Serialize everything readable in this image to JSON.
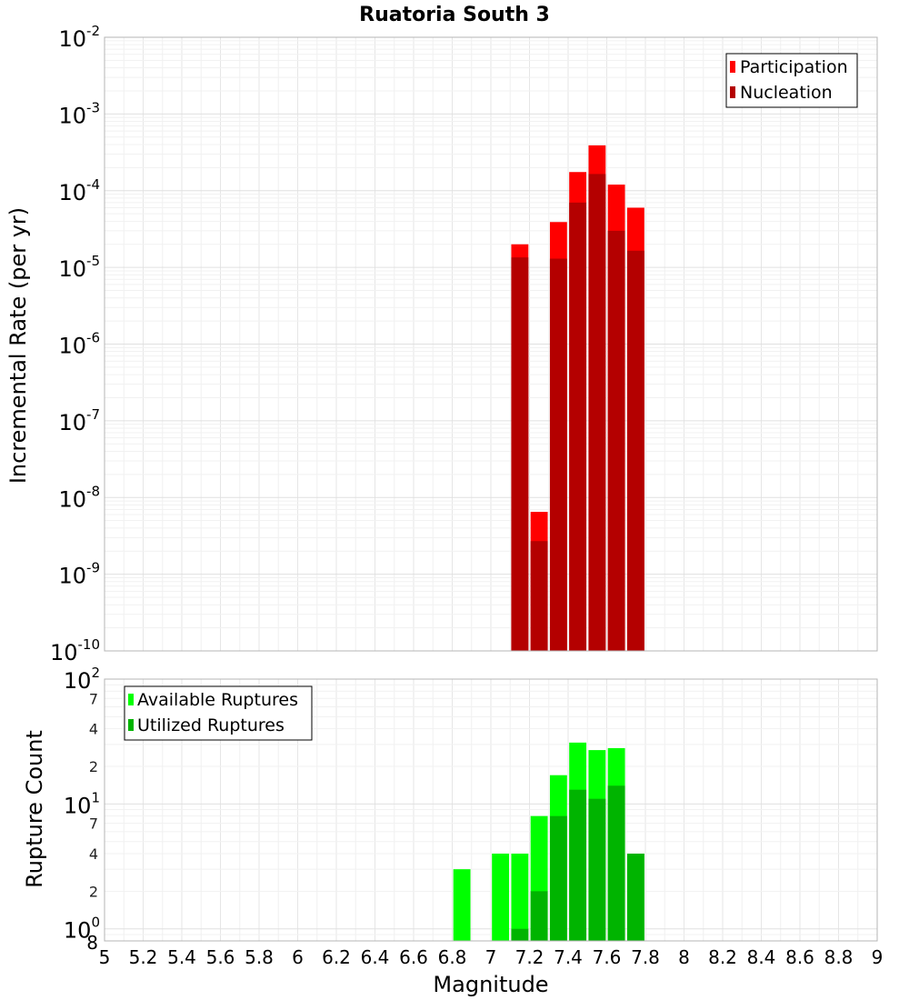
{
  "chart_data": [
    {
      "type": "bar",
      "title": "Ruatoria South 3",
      "xlabel": "",
      "ylabel": "Incremental Rate (per yr)",
      "yscale": "log",
      "ylim": [
        1e-10,
        0.01
      ],
      "xlim": [
        5,
        9
      ],
      "grid": true,
      "legend_position": "top-right",
      "y_tick_labels": [
        {
          "base": "10",
          "exp": "-2"
        },
        {
          "base": "10",
          "exp": "-3"
        },
        {
          "base": "10",
          "exp": "-4"
        },
        {
          "base": "10",
          "exp": "-5"
        },
        {
          "base": "10",
          "exp": "-6"
        },
        {
          "base": "10",
          "exp": "-7"
        },
        {
          "base": "10",
          "exp": "-8"
        },
        {
          "base": "10",
          "exp": "-9"
        },
        {
          "base": "10",
          "exp": "-10"
        }
      ],
      "series": [
        {
          "name": "Participation",
          "color": "#ff0000",
          "x": [
            7.15,
            7.25,
            7.35,
            7.45,
            7.55,
            7.65,
            7.75
          ],
          "values": [
            2e-05,
            6.5e-09,
            3.9e-05,
            0.000175,
            0.00039,
            0.00012,
            6e-05
          ]
        },
        {
          "name": "Nucleation",
          "color": "#b40000",
          "x": [
            7.15,
            7.25,
            7.35,
            7.45,
            7.55,
            7.65,
            7.75
          ],
          "values": [
            1.35e-05,
            2.7e-09,
            1.3e-05,
            7e-05,
            0.000165,
            3e-05,
            1.65e-05
          ]
        }
      ]
    },
    {
      "type": "bar",
      "xlabel": "Magnitude",
      "ylabel": "Rupture Count",
      "yscale": "log",
      "ylim": [
        0.8,
        100
      ],
      "xlim": [
        5,
        9
      ],
      "grid": true,
      "legend_position": "top-left",
      "x_tick_labels": [
        "5",
        "5.2",
        "5.4",
        "5.6",
        "5.8",
        "6",
        "6.2",
        "6.4",
        "6.6",
        "6.8",
        "7",
        "7.2",
        "7.4",
        "7.6",
        "7.8",
        "8",
        "8.2",
        "8.4",
        "8.6",
        "8.8",
        "9"
      ],
      "y_tick_labels": [
        {
          "base": "10",
          "exp": "2",
          "value": 100
        },
        {
          "base": "10",
          "exp": "1",
          "value": 10
        },
        {
          "base": "10",
          "exp": "0",
          "value": 1
        }
      ],
      "y_minor_labels": [
        {
          "label": "7",
          "value": 70
        },
        {
          "label": "4",
          "value": 40
        },
        {
          "label": "2",
          "value": 20
        },
        {
          "label": "7",
          "value": 7
        },
        {
          "label": "4",
          "value": 4
        },
        {
          "label": "2",
          "value": 2
        },
        {
          "label": "8",
          "value": 0.8
        }
      ],
      "series": [
        {
          "name": "Available Ruptures",
          "color": "#00ff00",
          "x": [
            6.85,
            7.05,
            7.15,
            7.25,
            7.35,
            7.45,
            7.55,
            7.65,
            7.75
          ],
          "values": [
            3,
            4,
            4,
            8,
            17,
            31,
            27,
            28,
            4
          ]
        },
        {
          "name": "Utilized Ruptures",
          "color": "#00b400",
          "x": [
            7.15,
            7.25,
            7.35,
            7.45,
            7.55,
            7.65,
            7.75
          ],
          "values": [
            1,
            2,
            8,
            13,
            11,
            14,
            4
          ]
        }
      ]
    }
  ]
}
